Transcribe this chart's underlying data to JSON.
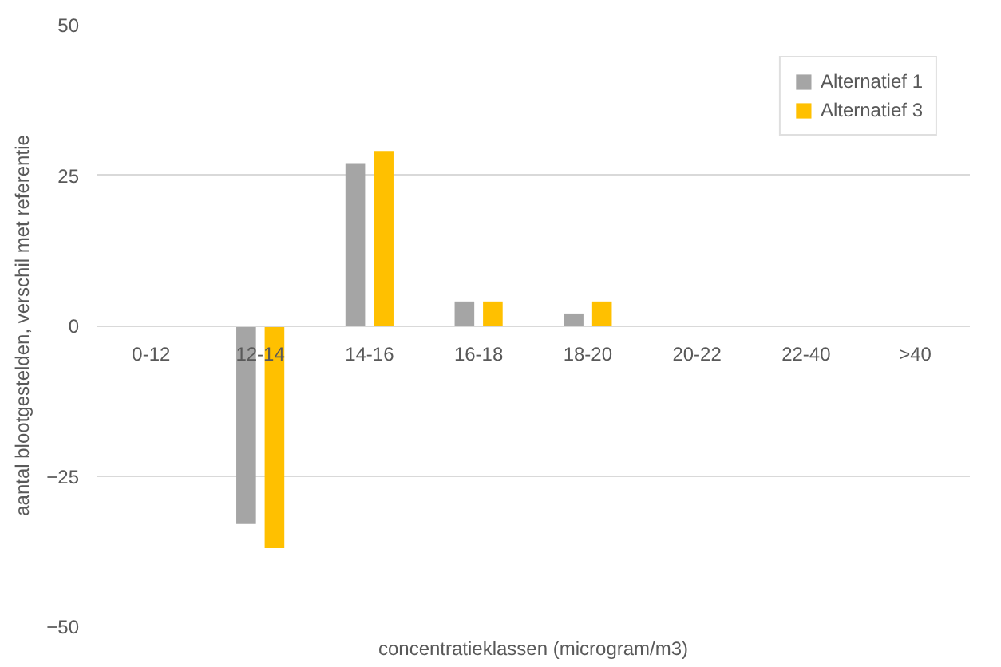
{
  "chart_data": {
    "type": "bar",
    "xlabel": "concentratieklassen (microgram/m3)",
    "ylabel": "aantal blootgestelden, verschil met referentie",
    "categories": [
      "0-12",
      "12-14",
      "14-16",
      "16-18",
      "18-20",
      "20-22",
      "22-40",
      ">40"
    ],
    "series": [
      {
        "name": "Alternatief 1",
        "color": "#a5a5a5",
        "values": [
          0,
          -33,
          27,
          4,
          2,
          0,
          0,
          0
        ]
      },
      {
        "name": "Alternatief 3",
        "color": "#ffc000",
        "values": [
          0,
          -37,
          29,
          4,
          4,
          0,
          0,
          0
        ]
      }
    ],
    "ylim": [
      -50,
      50
    ],
    "yticks": [
      -50,
      -25,
      0,
      25,
      50
    ],
    "grid": "y",
    "legend": "top right"
  }
}
